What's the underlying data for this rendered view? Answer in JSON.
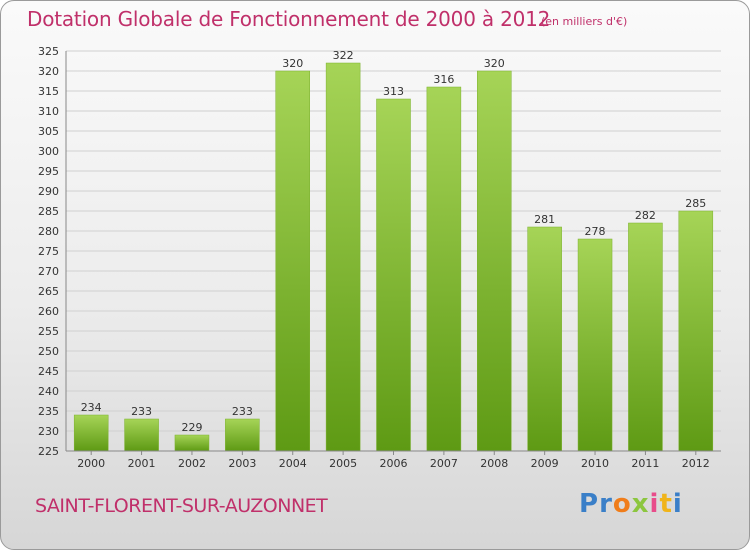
{
  "header": {
    "title": "Dotation Globale de Fonctionnement de 2000 à 2012",
    "unit": "(en milliers d'€)"
  },
  "footer": {
    "city": "SAINT-FLORENT-SUR-AUZONNET",
    "logo_letters": [
      "P",
      "r",
      "o",
      "x",
      "i",
      "t",
      "i"
    ],
    "logo_colors": [
      "#3a7fc8",
      "#3a7fc8",
      "#f07d1a",
      "#8cc63f",
      "#e84c8a",
      "#f0b41a",
      "#3a7fc8"
    ]
  },
  "colors": {
    "title": "#c0306a",
    "bar_light": "#a6d457",
    "bar_dark": "#5e9a14",
    "grid": "#d0d0d0"
  },
  "chart_data": {
    "type": "bar",
    "categories": [
      "2000",
      "2001",
      "2002",
      "2003",
      "2004",
      "2005",
      "2006",
      "2007",
      "2008",
      "2009",
      "2010",
      "2011",
      "2012"
    ],
    "values": [
      234,
      233,
      229,
      233,
      320,
      322,
      313,
      316,
      320,
      281,
      278,
      282,
      285
    ],
    "ylim": [
      225,
      325
    ],
    "ytick_step": 5,
    "grid": true,
    "data_labels": true
  }
}
